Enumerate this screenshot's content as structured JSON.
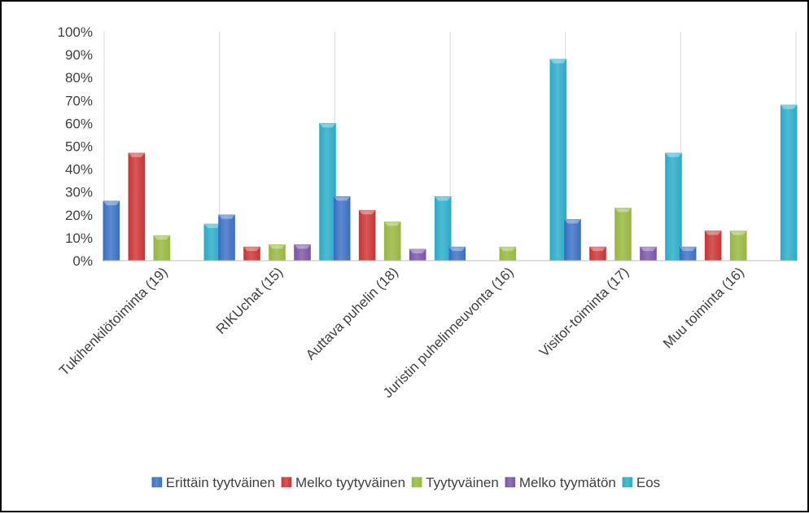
{
  "chart_data": {
    "type": "bar",
    "title": "",
    "xlabel": "",
    "ylabel": "",
    "ylim": [
      0,
      100
    ],
    "yticks": [
      "0%",
      "10%",
      "20%",
      "30%",
      "40%",
      "50%",
      "60%",
      "70%",
      "80%",
      "90%",
      "100%"
    ],
    "grid": "vertical",
    "legend_position": "bottom",
    "categories": [
      "Tukihenkilötoiminta (19)",
      "RIKUchat (15)",
      "Auttava puhelin (18)",
      "Juristin puhelinneuvonta (16)",
      "Visitor-toiminta (17)",
      "Muu toiminta (16)"
    ],
    "series": [
      {
        "name": "Erittäin tyytväinen",
        "color": "#3a6fc4",
        "values": [
          26,
          20,
          28,
          6,
          18,
          6
        ]
      },
      {
        "name": "Melko tyytyväinen",
        "color": "#cc3333",
        "values": [
          47,
          6,
          22,
          0,
          6,
          13
        ]
      },
      {
        "name": "Tyytyväinen",
        "color": "#96b73e",
        "values": [
          11,
          7,
          17,
          6,
          23,
          13
        ]
      },
      {
        "name": "Melko tyymätön",
        "color": "#7a55a8",
        "values": [
          0,
          7,
          5,
          0,
          6,
          0
        ]
      },
      {
        "name": "Eos",
        "color": "#2aabc8",
        "values": [
          16,
          60,
          28,
          88,
          47,
          68
        ]
      }
    ]
  }
}
